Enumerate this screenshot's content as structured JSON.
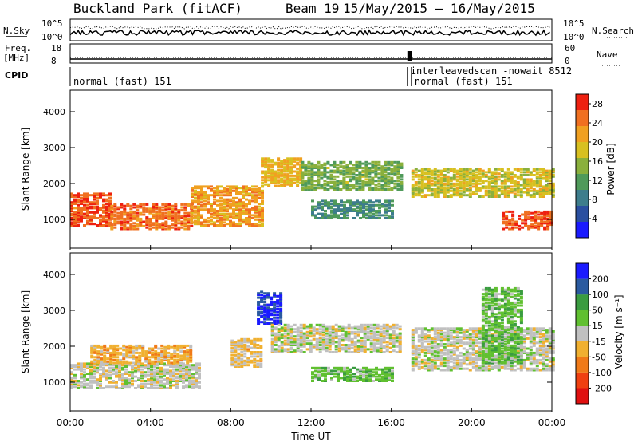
{
  "header": {
    "station": "Buckland Park (fitACF)",
    "beam_label": "Beam 19",
    "date_range": "15/May/2015 – 16/May/2015"
  },
  "top_panels": {
    "nsky_label": "N.Sky",
    "nsky_ticks": [
      "10^5",
      "10^0"
    ],
    "nsearch_label": "N.Search",
    "nsearch_ticks": [
      "10^5",
      "10^0"
    ],
    "freq_label": "Freq.",
    "freq_unit": "[MHz]",
    "freq_ticks": [
      "18",
      "8"
    ],
    "nave_label": "Nave",
    "nave_ticks": [
      "60",
      "0"
    ],
    "cpid_label": "CPID",
    "cpid_segments": [
      {
        "text": "normal (fast) 151",
        "start_h": 0,
        "end_h": 16.8
      },
      {
        "text": "interleavedscan -nowait 8512",
        "start_h": 16.8,
        "end_h": 17.0
      },
      {
        "text": "normal (fast) 151",
        "start_h": 17.0,
        "end_h": 24
      }
    ]
  },
  "colors": {
    "power_scale": [
      "#1a1aff",
      "#2a4fa0",
      "#3d7d8c",
      "#4f9a5a",
      "#8ab03c",
      "#d8c020",
      "#f0a020",
      "#f07020",
      "#ee2010"
    ],
    "velocity_scale": [
      "#e01010",
      "#f04010",
      "#f07a18",
      "#f0b030",
      "#c0c0c0",
      "#60c030",
      "#3a9c40",
      "#2a5aa0",
      "#1a1aff"
    ],
    "gap_white": "#ffffff"
  },
  "chart_data": [
    {
      "type": "heatmap",
      "title": "",
      "xlabel": "Time UT",
      "ylabel": "Slant Range [km]",
      "xlim_hours": [
        0,
        24
      ],
      "ylim": [
        200,
        4600
      ],
      "x_tick_labels": [
        "00:00",
        "04:00",
        "08:00",
        "12:00",
        "16:00",
        "20:00",
        "00:00"
      ],
      "x_tick_hours": [
        0,
        4,
        8,
        12,
        16,
        20,
        24
      ],
      "y_ticks": [
        1000,
        2000,
        3000,
        4000
      ],
      "colorbar": {
        "label": "Power [dB]",
        "ticks": [
          4,
          8,
          12,
          16,
          20,
          24,
          28
        ],
        "range": [
          0,
          30
        ]
      },
      "bands": [
        {
          "t0": 0.0,
          "t1": 2.0,
          "r0": 800,
          "r1": 1700,
          "value": 26
        },
        {
          "t0": 2.0,
          "t1": 6.0,
          "r0": 700,
          "r1": 1400,
          "value": 25
        },
        {
          "t0": 6.0,
          "t1": 9.5,
          "r0": 800,
          "r1": 1900,
          "value": 22
        },
        {
          "t0": 9.5,
          "t1": 11.5,
          "r0": 1900,
          "r1": 2700,
          "value": 20
        },
        {
          "t0": 11.5,
          "t1": 16.5,
          "r0": 1800,
          "r1": 2600,
          "value": 14
        },
        {
          "t0": 12.0,
          "t1": 16.0,
          "r0": 1000,
          "r1": 1500,
          "value": 10
        },
        {
          "t0": 17.0,
          "t1": 24.0,
          "r0": 1600,
          "r1": 2400,
          "value": 18
        },
        {
          "t0": 21.5,
          "t1": 24.0,
          "r0": 700,
          "r1": 1200,
          "value": 26
        }
      ]
    },
    {
      "type": "heatmap",
      "title": "",
      "xlabel": "Time UT",
      "ylabel": "Slant Range [km]",
      "xlim_hours": [
        0,
        24
      ],
      "ylim": [
        200,
        4600
      ],
      "x_tick_labels": [
        "00:00",
        "04:00",
        "08:00",
        "12:00",
        "16:00",
        "20:00",
        "00:00"
      ],
      "x_tick_hours": [
        0,
        4,
        8,
        12,
        16,
        20,
        24
      ],
      "y_ticks": [
        1000,
        2000,
        3000,
        4000
      ],
      "colorbar": {
        "label": "Velocity [m s⁻¹]",
        "ticks": [
          200,
          100,
          50,
          15,
          -15,
          -50,
          -100,
          -200
        ],
        "range": [
          -250,
          250
        ]
      },
      "bands": [
        {
          "t0": 0.0,
          "t1": 6.5,
          "r0": 800,
          "r1": 1500,
          "value": 0
        },
        {
          "t0": 1.0,
          "t1": 6.0,
          "r0": 1500,
          "r1": 2000,
          "value": -60
        },
        {
          "t0": 8.0,
          "t1": 9.5,
          "r0": 1400,
          "r1": 2200,
          "value": -40
        },
        {
          "t0": 9.3,
          "t1": 10.5,
          "r0": 2600,
          "r1": 3500,
          "value": 200
        },
        {
          "t0": 10.0,
          "t1": 16.5,
          "r0": 1800,
          "r1": 2600,
          "value": 0
        },
        {
          "t0": 12.0,
          "t1": 16.0,
          "r0": 1000,
          "r1": 1400,
          "value": 60
        },
        {
          "t0": 17.0,
          "t1": 24.0,
          "r0": 1300,
          "r1": 2500,
          "value": 0
        },
        {
          "t0": 20.5,
          "t1": 22.5,
          "r0": 1500,
          "r1": 3600,
          "value": 60
        }
      ]
    }
  ]
}
